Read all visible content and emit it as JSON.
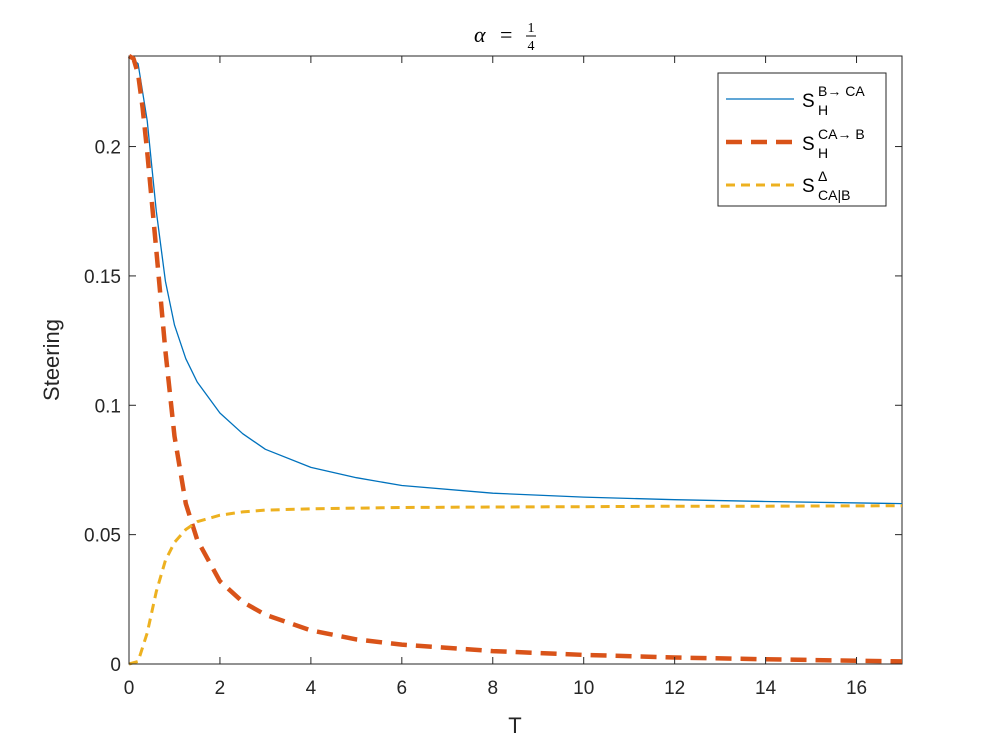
{
  "chart_data": {
    "type": "line",
    "title": {
      "symbol": "α",
      "equals": "=",
      "numerator": "1",
      "denominator": "4"
    },
    "xlabel": "T",
    "ylabel": "Steering",
    "xlim": [
      0,
      17
    ],
    "ylim": [
      0,
      0.235
    ],
    "xticks": [
      0,
      2,
      4,
      6,
      8,
      10,
      12,
      14,
      16
    ],
    "xtick_labels": [
      "0",
      "2",
      "4",
      "6",
      "8",
      "10",
      "12",
      "14",
      "16"
    ],
    "yticks": [
      0,
      0.05,
      0.1,
      0.15,
      0.2
    ],
    "ytick_labels": [
      "0",
      "0.05",
      "0.1",
      "0.15",
      "0.2"
    ],
    "grid": false,
    "legend_position": "top-right",
    "series": [
      {
        "name": {
          "base": "S",
          "sup": "B→ CA",
          "sub": "H"
        },
        "color": "#0072BD",
        "style": "solid",
        "x": [
          0,
          0.2,
          0.4,
          0.6,
          0.8,
          1.0,
          1.25,
          1.5,
          2,
          2.5,
          3,
          4,
          5,
          6,
          8,
          10,
          12,
          14,
          17
        ],
        "y": [
          0.235,
          0.232,
          0.21,
          0.175,
          0.148,
          0.131,
          0.118,
          0.109,
          0.097,
          0.089,
          0.083,
          0.076,
          0.072,
          0.069,
          0.066,
          0.0645,
          0.0635,
          0.0628,
          0.062
        ]
      },
      {
        "name": {
          "base": "S",
          "sup": "CA→ B",
          "sub": "H"
        },
        "color": "#D95319",
        "style": "dashed-thick",
        "x": [
          0,
          0.1,
          0.2,
          0.3,
          0.4,
          0.6,
          0.8,
          1.0,
          1.25,
          1.5,
          2,
          2.5,
          3,
          4,
          5,
          6,
          8,
          10,
          12,
          14,
          17
        ],
        "y": [
          0.235,
          0.234,
          0.228,
          0.215,
          0.198,
          0.16,
          0.121,
          0.088,
          0.062,
          0.048,
          0.032,
          0.024,
          0.019,
          0.013,
          0.0095,
          0.0075,
          0.005,
          0.0035,
          0.0025,
          0.0018,
          0.001
        ]
      },
      {
        "name": {
          "base": "S",
          "sup": "Δ",
          "sub": "CA|B"
        },
        "color": "#EDB120",
        "style": "dashed",
        "x": [
          0,
          0.2,
          0.4,
          0.6,
          0.8,
          1.0,
          1.25,
          1.5,
          2,
          2.5,
          3,
          4,
          6,
          8,
          10,
          12,
          14,
          17
        ],
        "y": [
          0,
          0.001,
          0.012,
          0.028,
          0.04,
          0.047,
          0.052,
          0.055,
          0.0575,
          0.0588,
          0.0595,
          0.06,
          0.0605,
          0.0607,
          0.0608,
          0.061,
          0.061,
          0.0612
        ]
      }
    ]
  }
}
